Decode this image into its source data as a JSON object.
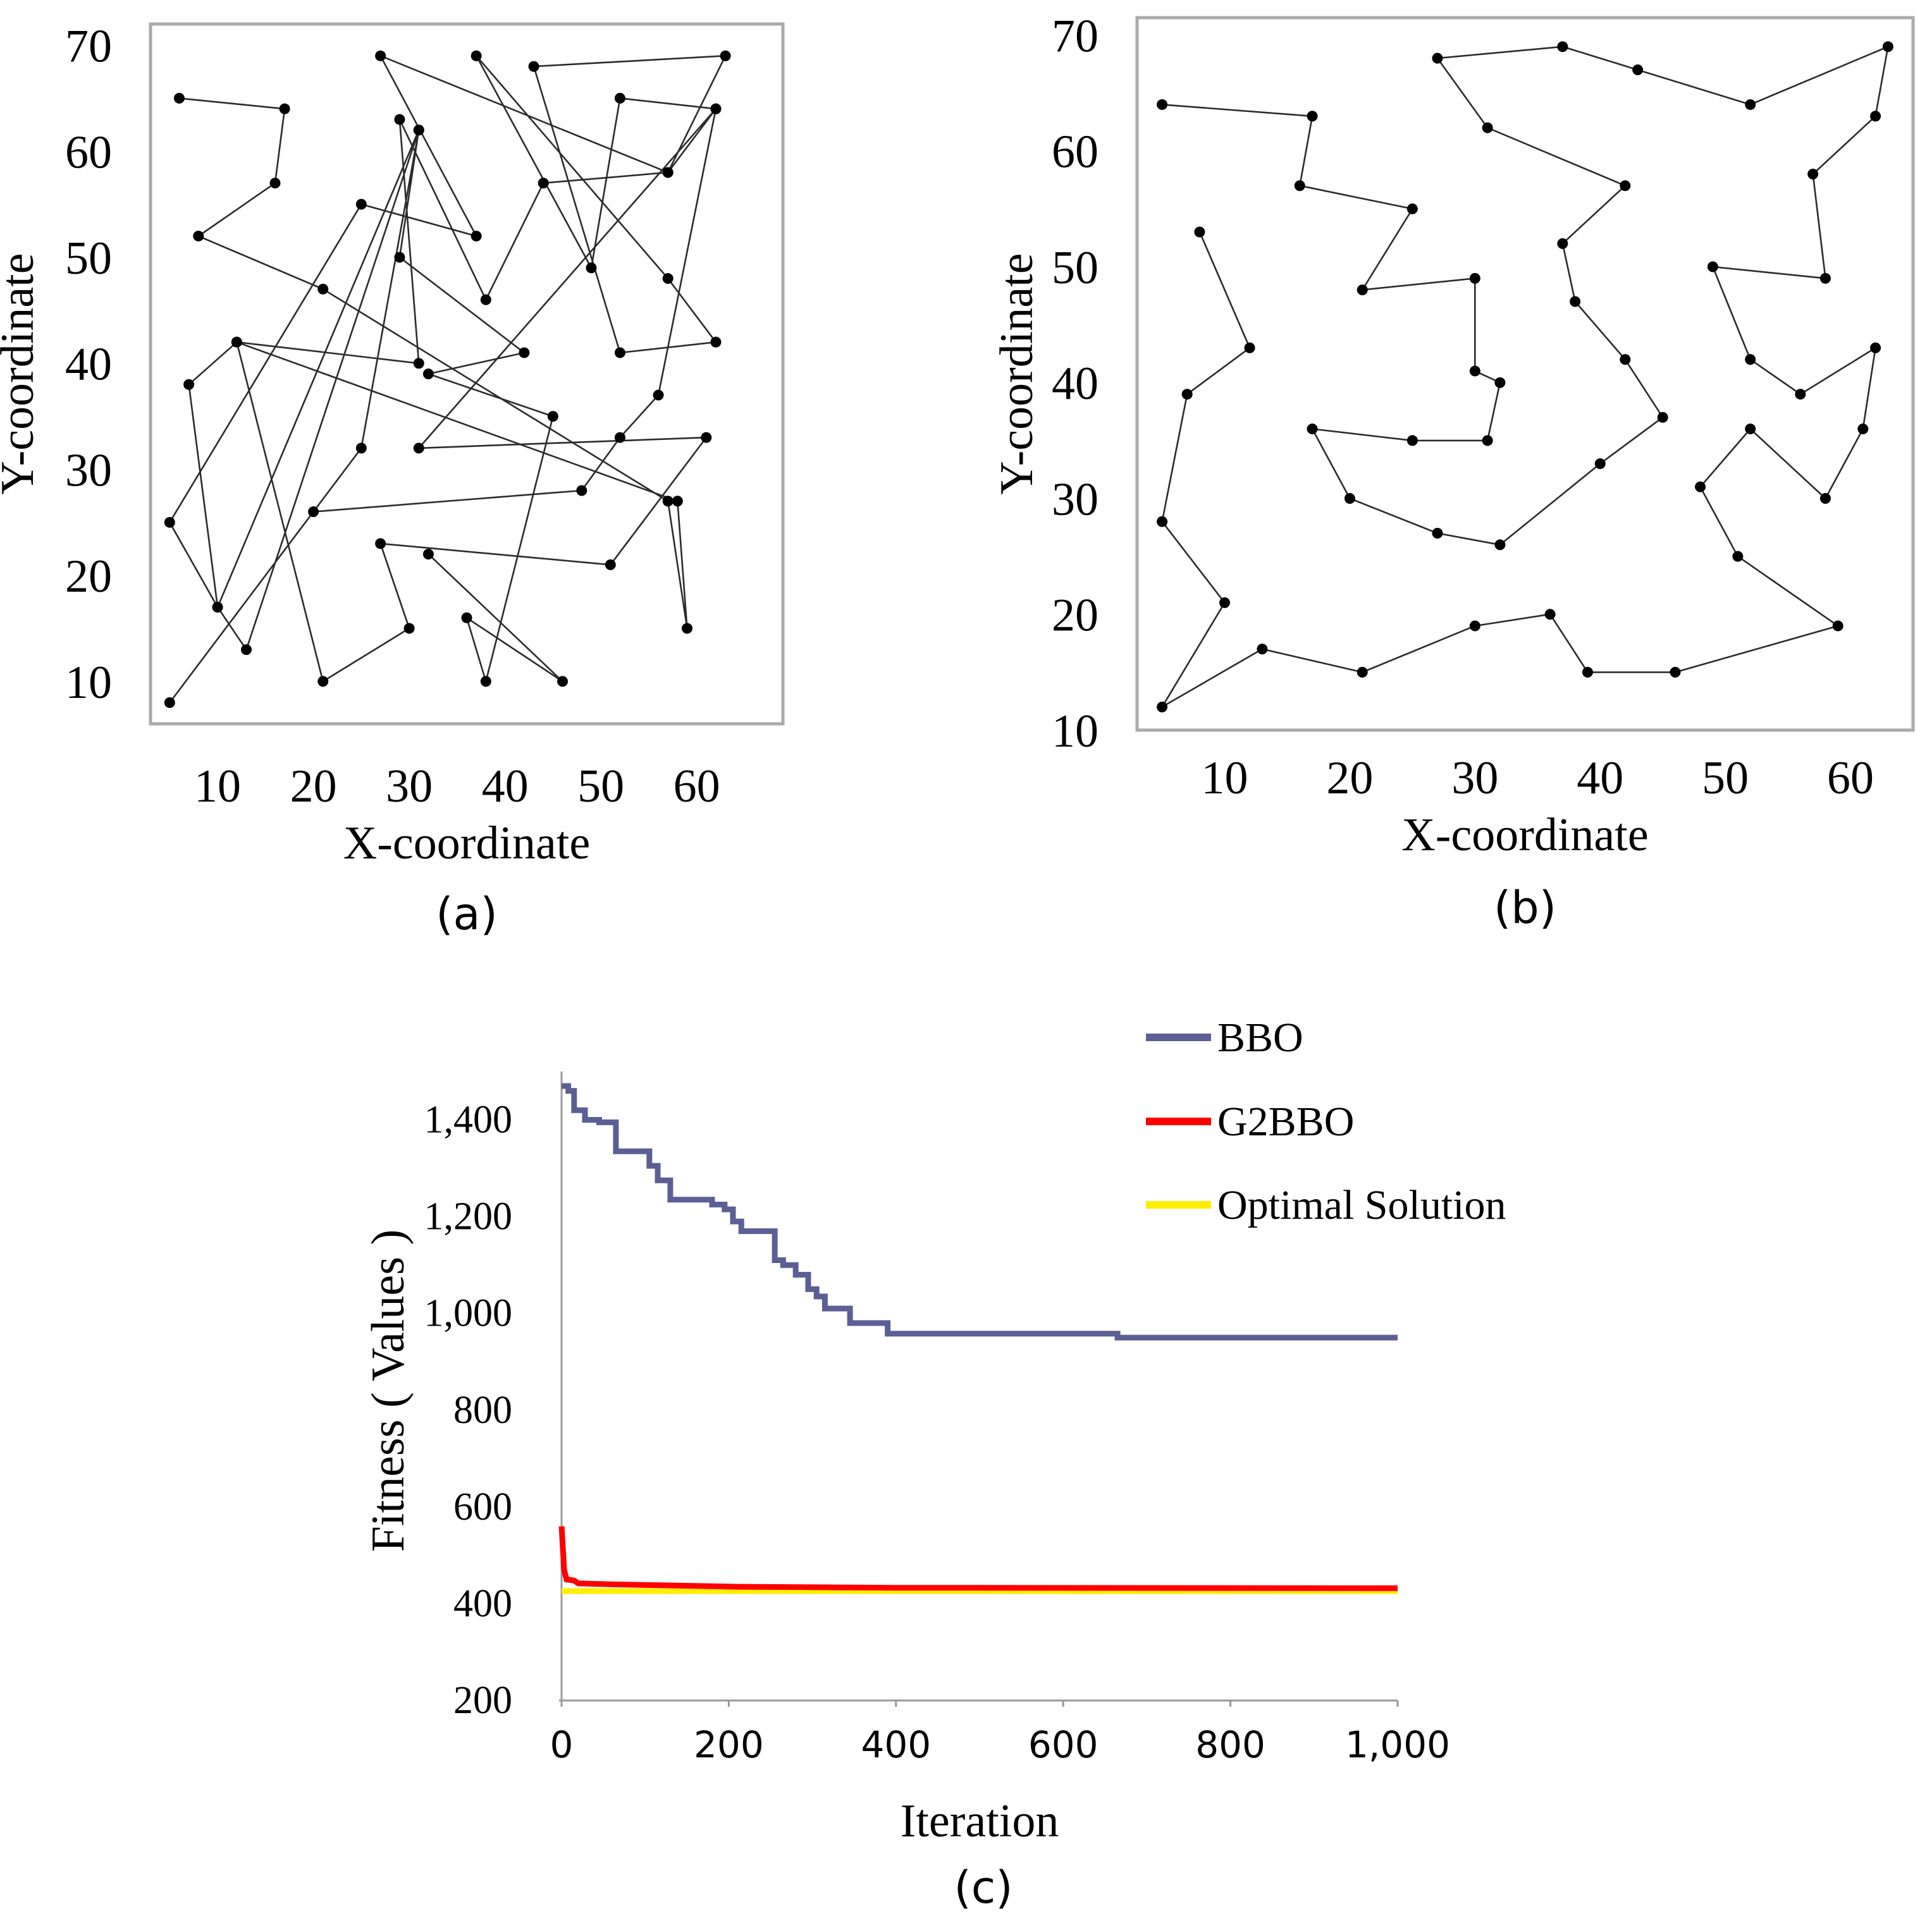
{
  "colors": {
    "frame": "#aaaaaa",
    "route": "#2b2b2b",
    "city": "#000000",
    "bbo": "#5c5f95",
    "g2bbo": "#ff0000",
    "optimal": "#ffee00",
    "axis": "#999999",
    "text": "#000000"
  },
  "chart_data": [
    {
      "type": "scatter",
      "caption": "(a)",
      "xlabel": "X-coordinate",
      "ylabel": "Y-coordinate",
      "xlim": [
        3,
        69
      ],
      "ylim": [
        6,
        72
      ],
      "xticks": [
        "10",
        "20",
        "30",
        "40",
        "50",
        "60"
      ],
      "yticks": [
        "10",
        "20",
        "30",
        "40",
        "50",
        "60",
        "70"
      ],
      "grid": false,
      "route": [
        [
          6,
          65
        ],
        [
          17,
          64
        ],
        [
          16,
          57
        ],
        [
          8,
          52
        ],
        [
          21,
          47
        ],
        [
          57,
          27
        ],
        [
          59,
          15
        ],
        [
          58,
          27
        ],
        [
          12,
          42
        ],
        [
          21,
          10
        ],
        [
          30,
          15
        ],
        [
          27,
          23
        ],
        [
          51,
          21
        ],
        [
          61,
          33
        ],
        [
          31,
          32
        ],
        [
          62,
          64
        ],
        [
          52,
          65
        ],
        [
          49,
          49
        ],
        [
          37,
          69
        ],
        [
          57,
          48
        ],
        [
          62,
          42
        ],
        [
          52,
          41
        ],
        [
          43,
          68
        ],
        [
          63,
          69
        ],
        [
          57,
          58
        ],
        [
          27,
          69
        ],
        [
          37,
          52
        ],
        [
          25,
          55
        ],
        [
          5,
          25
        ],
        [
          10,
          17
        ],
        [
          13,
          13
        ],
        [
          31,
          62
        ],
        [
          25,
          32
        ],
        [
          5,
          8
        ],
        [
          20,
          26
        ],
        [
          48,
          28
        ],
        [
          52,
          33
        ],
        [
          56,
          37
        ],
        [
          62,
          64
        ],
        [
          57,
          58
        ],
        [
          44,
          57
        ],
        [
          38,
          46
        ],
        [
          29,
          63
        ],
        [
          31,
          40
        ],
        [
          12,
          42
        ],
        [
          7,
          38
        ],
        [
          10,
          17
        ],
        [
          31,
          62
        ],
        [
          29,
          50
        ],
        [
          42,
          41
        ],
        [
          32,
          39
        ],
        [
          45,
          35
        ],
        [
          38,
          10
        ],
        [
          36,
          16
        ],
        [
          46,
          10
        ],
        [
          32,
          22
        ]
      ]
    },
    {
      "type": "scatter",
      "caption": "(b)",
      "xlabel": "X-coordinate",
      "ylabel": "Y-coordinate",
      "xlim": [
        3,
        65
      ],
      "ylim": [
        10,
        71.5
      ],
      "xticks": [
        "10",
        "20",
        "30",
        "40",
        "50",
        "60"
      ],
      "yticks": [
        "10",
        "20",
        "30",
        "40",
        "50",
        "60",
        "70"
      ],
      "grid": false,
      "route": [
        [
          5,
          64
        ],
        [
          17,
          63
        ],
        [
          16,
          57
        ],
        [
          25,
          55
        ],
        [
          21,
          48
        ],
        [
          30,
          49
        ],
        [
          30,
          41
        ],
        [
          32,
          40
        ],
        [
          31,
          35
        ],
        [
          25,
          35
        ],
        [
          17,
          36
        ],
        [
          20,
          30
        ],
        [
          27,
          27
        ],
        [
          32,
          26
        ],
        [
          40,
          33
        ],
        [
          45,
          37
        ],
        [
          42,
          42
        ],
        [
          38,
          47
        ],
        [
          37,
          52
        ],
        [
          42,
          57
        ],
        [
          31,
          62
        ],
        [
          27,
          68
        ],
        [
          37,
          69
        ],
        [
          43,
          67
        ],
        [
          52,
          64
        ],
        [
          63,
          69
        ],
        [
          62,
          63
        ],
        [
          57,
          58
        ],
        [
          58,
          49
        ],
        [
          49,
          50
        ],
        [
          52,
          42
        ],
        [
          56,
          39
        ],
        [
          62,
          43
        ],
        [
          61,
          36
        ],
        [
          58,
          30
        ],
        [
          52,
          36
        ],
        [
          48,
          31
        ],
        [
          51,
          25
        ],
        [
          59,
          19
        ],
        [
          46,
          15
        ],
        [
          39,
          15
        ],
        [
          36,
          20
        ],
        [
          30,
          19
        ],
        [
          21,
          15
        ],
        [
          13,
          17
        ],
        [
          5,
          12
        ],
        [
          10,
          21
        ],
        [
          5,
          28
        ],
        [
          7,
          39
        ],
        [
          12,
          43
        ],
        [
          8,
          53
        ]
      ]
    },
    {
      "type": "line",
      "caption": "(c)",
      "xlabel": "Iteration",
      "ylabel": "Fitness ( Values )",
      "xlim": [
        0,
        1000
      ],
      "ylim": [
        200,
        1500
      ],
      "xticks": [
        "0",
        "200",
        "400",
        "600",
        "800",
        "1,000"
      ],
      "yticks": [
        "200",
        "400",
        "600",
        "800",
        "1,000",
        "1,200",
        "1,400"
      ],
      "grid": false,
      "legend_position": "top-right",
      "series": [
        {
          "name": "BBO",
          "color": "#5c5f95",
          "step": true,
          "points": [
            [
              0,
              1470
            ],
            [
              8,
              1460
            ],
            [
              15,
              1420
            ],
            [
              28,
              1400
            ],
            [
              45,
              1395
            ],
            [
              65,
              1335
            ],
            [
              105,
              1305
            ],
            [
              115,
              1275
            ],
            [
              130,
              1235
            ],
            [
              180,
              1225
            ],
            [
              195,
              1215
            ],
            [
              205,
              1190
            ],
            [
              215,
              1170
            ],
            [
              255,
              1110
            ],
            [
              265,
              1100
            ],
            [
              280,
              1080
            ],
            [
              295,
              1050
            ],
            [
              305,
              1035
            ],
            [
              315,
              1010
            ],
            [
              345,
              980
            ],
            [
              390,
              958
            ],
            [
              665,
              950
            ],
            [
              1000,
              950
            ]
          ]
        },
        {
          "name": "G2BBO",
          "color": "#ff0000",
          "step": false,
          "points": [
            [
              0,
              560
            ],
            [
              3,
              470
            ],
            [
              6,
              450
            ],
            [
              15,
              448
            ],
            [
              20,
              442
            ],
            [
              60,
              440
            ],
            [
              120,
              438
            ],
            [
              210,
              435
            ],
            [
              400,
              433
            ],
            [
              1000,
              432
            ]
          ]
        },
        {
          "name": "Optimal Solution",
          "color": "#ffee00",
          "step": false,
          "points": [
            [
              0,
              426
            ],
            [
              1000,
              426
            ]
          ]
        }
      ]
    }
  ]
}
